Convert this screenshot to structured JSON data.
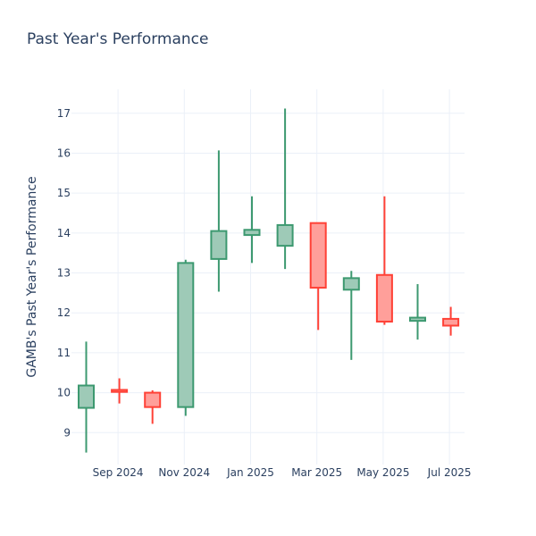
{
  "chart_data": {
    "type": "candlestick",
    "title": "Past Year's Performance",
    "xlabel": "",
    "ylabel": "GAMB's Past Year's Performance",
    "ylim": [
      8.2,
      17.6
    ],
    "y_ticks": [
      9,
      10,
      11,
      12,
      13,
      14,
      15,
      16,
      17
    ],
    "x_ticks": [
      "Sep 2024",
      "Nov 2024",
      "Jan 2025",
      "Mar 2025",
      "May 2025",
      "Jul 2025"
    ],
    "grid": true,
    "legend": "none",
    "colors": {
      "increasing": "#3d9970",
      "increasing_fill": "#9ecab7",
      "decreasing": "#ff4136",
      "decreasing_fill": "#ff9f9a"
    },
    "candles": [
      {
        "period": "Jul 2024",
        "open": 9.62,
        "high": 11.28,
        "low": 8.5,
        "close": 10.18
      },
      {
        "period": "Aug 2024",
        "open": 10.07,
        "high": 10.36,
        "low": 9.73,
        "close": 10.02
      },
      {
        "period": "Sep 2024",
        "open": 10.0,
        "high": 10.06,
        "low": 9.22,
        "close": 9.64
      },
      {
        "period": "Oct 2024",
        "open": 9.64,
        "high": 13.33,
        "low": 9.42,
        "close": 13.25
      },
      {
        "period": "Nov 2024",
        "open": 13.35,
        "high": 16.07,
        "low": 12.53,
        "close": 14.05
      },
      {
        "period": "Dec 2024",
        "open": 13.95,
        "high": 14.92,
        "low": 13.25,
        "close": 14.08
      },
      {
        "period": "Jan 2025",
        "open": 13.68,
        "high": 17.12,
        "low": 13.1,
        "close": 14.2
      },
      {
        "period": "Feb 2025",
        "open": 14.25,
        "high": 14.25,
        "low": 11.57,
        "close": 12.63
      },
      {
        "period": "Mar 2025",
        "open": 12.58,
        "high": 13.05,
        "low": 10.82,
        "close": 12.87
      },
      {
        "period": "Apr 2025",
        "open": 12.95,
        "high": 14.92,
        "low": 11.7,
        "close": 11.78
      },
      {
        "period": "May 2025",
        "open": 11.8,
        "high": 12.72,
        "low": 11.33,
        "close": 11.88
      },
      {
        "period": "Jun 2025",
        "open": 11.85,
        "high": 12.15,
        "low": 11.43,
        "close": 11.68
      }
    ]
  }
}
